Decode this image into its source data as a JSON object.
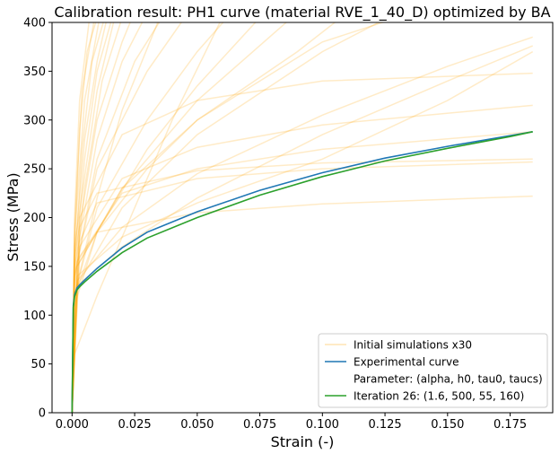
{
  "chart_data": {
    "type": "line",
    "title": "Calibration result: PH1 curve (material RVE_1_40_D) optimized by BA",
    "xlabel": "Strain (-)",
    "ylabel": "Stress (MPa)",
    "xlim": [
      -0.008,
      0.192
    ],
    "ylim": [
      0,
      400
    ],
    "xticks": [
      0.0,
      0.025,
      0.05,
      0.075,
      0.1,
      0.125,
      0.15,
      0.175
    ],
    "xtick_labels": [
      "0.000",
      "0.025",
      "0.050",
      "0.075",
      "0.100",
      "0.125",
      "0.150",
      "0.175"
    ],
    "yticks": [
      0,
      50,
      100,
      150,
      200,
      250,
      300,
      350,
      400
    ],
    "ytick_labels": [
      "0",
      "50",
      "100",
      "150",
      "200",
      "250",
      "300",
      "350",
      "400"
    ],
    "grid": false,
    "legend_position": "lower-right",
    "legend": [
      {
        "label": "Initial simulations x30",
        "color": "#ffa500",
        "alpha": 0.3
      },
      {
        "label": "Experimental curve",
        "color": "#1f77b4"
      },
      {
        "label": "Parameter: (alpha, h0, tau0, taucs)",
        "color": "none"
      },
      {
        "label": "Iteration 26: (1.6, 500, 55, 160)",
        "color": "#2ca02c"
      }
    ],
    "series": [
      {
        "name": "Experimental curve",
        "color": "#1f77b4",
        "x": [
          0,
          0.0005,
          0.001,
          0.002,
          0.003,
          0.005,
          0.01,
          0.02,
          0.03,
          0.05,
          0.075,
          0.1,
          0.125,
          0.15,
          0.175,
          0.184
        ],
        "y": [
          0,
          110,
          121,
          128,
          131,
          136,
          148,
          169,
          185,
          206,
          228,
          246,
          261,
          273,
          284,
          288
        ]
      },
      {
        "name": "Iteration 26: (1.6, 500, 55, 160)",
        "color": "#2ca02c",
        "x": [
          0,
          0.0005,
          0.001,
          0.002,
          0.003,
          0.005,
          0.01,
          0.02,
          0.03,
          0.05,
          0.075,
          0.1,
          0.125,
          0.15,
          0.175,
          0.184
        ],
        "y": [
          0,
          108,
          119,
          126,
          129,
          134,
          145,
          164,
          179,
          200,
          223,
          242,
          258,
          271,
          283,
          288
        ]
      }
    ],
    "initial_simulations": {
      "color": "#ffa500",
      "alpha": 0.22,
      "curves": [
        {
          "x": [
            0,
            0.003,
            0.01,
            0.05,
            0.1,
            0.184
          ],
          "y": [
            0,
            175,
            215,
            240,
            250,
            257
          ]
        },
        {
          "x": [
            0,
            0.003,
            0.01,
            0.05,
            0.1,
            0.184
          ],
          "y": [
            0,
            190,
            225,
            248,
            256,
            260
          ]
        },
        {
          "x": [
            0,
            0.002,
            0.01,
            0.05,
            0.1,
            0.184
          ],
          "y": [
            0,
            155,
            185,
            205,
            214,
            222
          ]
        },
        {
          "x": [
            0,
            0.003,
            0.02,
            0.05,
            0.1,
            0.184
          ],
          "y": [
            0,
            200,
            285,
            320,
            340,
            348
          ]
        },
        {
          "x": [
            0,
            0.003,
            0.02,
            0.05,
            0.1,
            0.184
          ],
          "y": [
            0,
            170,
            240,
            272,
            295,
            315
          ]
        },
        {
          "x": [
            0,
            0.003,
            0.02,
            0.05,
            0.1,
            0.184
          ],
          "y": [
            0,
            160,
            225,
            250,
            270,
            288
          ]
        },
        {
          "x": [
            0,
            0.002,
            0.02,
            0.05,
            0.1,
            0.15,
            0.184
          ],
          "y": [
            0,
            140,
            180,
            215,
            260,
            320,
            370
          ]
        },
        {
          "x": [
            0,
            0.002,
            0.02,
            0.05,
            0.1,
            0.15,
            0.184
          ],
          "y": [
            0,
            135,
            190,
            245,
            305,
            355,
            385
          ]
        },
        {
          "x": [
            0,
            0.002,
            0.02,
            0.05,
            0.1,
            0.15,
            0.184
          ],
          "y": [
            0,
            130,
            170,
            220,
            285,
            340,
            376
          ]
        },
        {
          "x": [
            0,
            0.002,
            0.02,
            0.05,
            0.1,
            0.13
          ],
          "y": [
            0,
            130,
            210,
            285,
            370,
            410
          ]
        },
        {
          "x": [
            0,
            0.002,
            0.02,
            0.05,
            0.09
          ],
          "y": [
            0,
            150,
            230,
            320,
            410
          ]
        },
        {
          "x": [
            0,
            0.001,
            0.01,
            0.03,
            0.05,
            0.075
          ],
          "y": [
            0,
            110,
            185,
            270,
            335,
            405
          ]
        },
        {
          "x": [
            0,
            0.001,
            0.01,
            0.03,
            0.05,
            0.062
          ],
          "y": [
            0,
            120,
            210,
            300,
            370,
            405
          ]
        },
        {
          "x": [
            0,
            0.002,
            0.02,
            0.05,
            0.09,
            0.11
          ],
          "y": [
            0,
            150,
            230,
            300,
            370,
            410
          ]
        },
        {
          "x": [
            0,
            0.001,
            0.01,
            0.03,
            0.045
          ],
          "y": [
            0,
            140,
            250,
            350,
            405
          ]
        },
        {
          "x": [
            0,
            0.001,
            0.01,
            0.025,
            0.036
          ],
          "y": [
            0,
            140,
            260,
            360,
            405
          ]
        },
        {
          "x": [
            0,
            0.001,
            0.01,
            0.02,
            0.029
          ],
          "y": [
            0,
            150,
            280,
            360,
            405
          ]
        },
        {
          "x": [
            0,
            0.001,
            0.01,
            0.02,
            0.024
          ],
          "y": [
            0,
            160,
            300,
            380,
            405
          ]
        },
        {
          "x": [
            0,
            0.001,
            0.01,
            0.017
          ],
          "y": [
            0,
            170,
            330,
            405
          ]
        },
        {
          "x": [
            0,
            0.001,
            0.005,
            0.01,
            0.014
          ],
          "y": [
            0,
            160,
            280,
            360,
            405
          ]
        },
        {
          "x": [
            0,
            0.001,
            0.005,
            0.011
          ],
          "y": [
            0,
            180,
            320,
            405
          ]
        },
        {
          "x": [
            0,
            0.001,
            0.004,
            0.009
          ],
          "y": [
            0,
            190,
            330,
            405
          ]
        },
        {
          "x": [
            0,
            0.001,
            0.003,
            0.007
          ],
          "y": [
            0,
            200,
            320,
            405
          ]
        },
        {
          "x": [
            0,
            0.001,
            0.005,
            0.012,
            0.02
          ],
          "y": [
            0,
            130,
            230,
            340,
            405
          ]
        },
        {
          "x": [
            0,
            0.001,
            0.01,
            0.02,
            0.035
          ],
          "y": [
            0,
            120,
            220,
            310,
            405
          ]
        },
        {
          "x": [
            0,
            0.001,
            0.01,
            0.03,
            0.05,
            0.1,
            0.13
          ],
          "y": [
            0,
            120,
            185,
            250,
            300,
            380,
            405
          ]
        },
        {
          "x": [
            0,
            0.001,
            0.005,
            0.01,
            0.016
          ],
          "y": [
            0,
            140,
            260,
            350,
            405
          ]
        },
        {
          "x": [
            0,
            0.001,
            0.004,
            0.008,
            0.013
          ],
          "y": [
            0,
            150,
            270,
            360,
            405
          ]
        },
        {
          "x": [
            0,
            0.001,
            0.003,
            0.006,
            0.01
          ],
          "y": [
            0,
            170,
            290,
            370,
            405
          ]
        },
        {
          "x": [
            0,
            0.001,
            0.01,
            0.02,
            0.04,
            0.06
          ],
          "y": [
            0,
            60,
            120,
            180,
            300,
            405
          ]
        }
      ]
    }
  }
}
